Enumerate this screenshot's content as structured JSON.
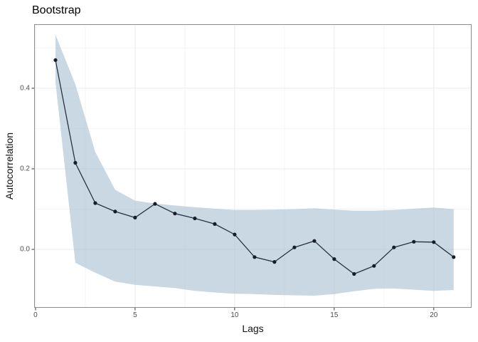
{
  "title": "Bootstrap",
  "chart_data": {
    "type": "line",
    "title": "Bootstrap",
    "xlabel": "Lags",
    "ylabel": "Autocorrelation",
    "legend": "none",
    "grid": "major+minor",
    "panel_border": true,
    "xlim": [
      -0.07,
      21.9
    ],
    "ylim": [
      -0.145,
      0.559
    ],
    "x_ticks": [
      0,
      5,
      10,
      15,
      20
    ],
    "x_tick_labels": [
      "0",
      "5",
      "10",
      "15",
      "20"
    ],
    "x_minor_ticks": [
      2.5,
      7.5,
      12.5,
      17.5
    ],
    "y_ticks": [
      0.0,
      0.2,
      0.4
    ],
    "y_tick_labels": [
      "0.0",
      "0.2",
      "0.4"
    ],
    "y_minor_ticks": [
      0.1,
      0.3,
      0.5
    ],
    "x": [
      1,
      2,
      3,
      4,
      5,
      6,
      7,
      8,
      9,
      10,
      11,
      12,
      13,
      14,
      15,
      16,
      17,
      18,
      19,
      20,
      21
    ],
    "series": [
      {
        "name": "autocorrelation",
        "style": "line+points",
        "values": [
          0.47,
          0.215,
          0.115,
          0.094,
          0.079,
          0.113,
          0.089,
          0.077,
          0.063,
          0.037,
          -0.019,
          -0.031,
          0.005,
          0.021,
          -0.024,
          -0.061,
          -0.041,
          0.005,
          0.019,
          0.018,
          -0.019
        ]
      },
      {
        "name": "bootstrap-band-upper",
        "style": "ribbon-upper",
        "values": [
          0.533,
          0.41,
          0.242,
          0.148,
          0.121,
          0.114,
          0.109,
          0.105,
          0.101,
          0.098,
          0.098,
          0.099,
          0.1,
          0.102,
          0.099,
          0.096,
          0.096,
          0.098,
          0.101,
          0.104,
          0.1
        ]
      },
      {
        "name": "bootstrap-band-lower",
        "style": "ribbon-lower",
        "values": [
          0.415,
          -0.033,
          -0.058,
          -0.08,
          -0.088,
          -0.092,
          -0.096,
          -0.103,
          -0.107,
          -0.11,
          -0.111,
          -0.113,
          -0.114,
          -0.115,
          -0.111,
          -0.104,
          -0.098,
          -0.097,
          -0.1,
          -0.103,
          -0.101
        ]
      }
    ],
    "colors": {
      "line": "#273240",
      "point": "#161d27",
      "ribbon": "#a9c0d4",
      "ribbon_opacity": 0.62,
      "grid_major": "#ebebeb",
      "grid_minor": "#f4f4f4",
      "panel_border": "#8c8c8c",
      "tick_mark": "#333333",
      "tick_text": "#4d4d4d",
      "axis_title_text": "#111111",
      "title_text": "#000000",
      "panel_bg": "#ffffff",
      "page_bg": "#ffffff"
    }
  }
}
